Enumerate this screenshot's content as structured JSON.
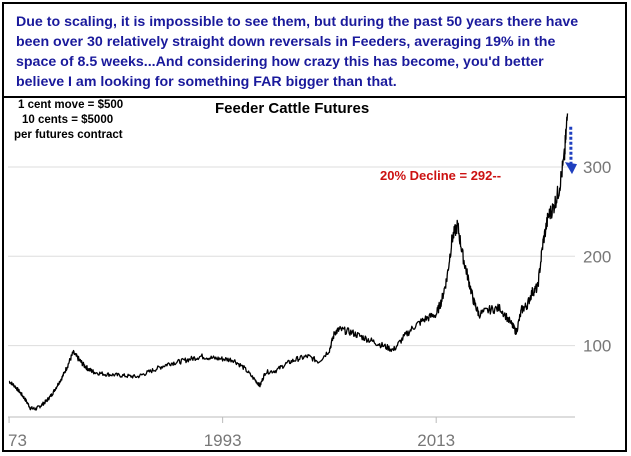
{
  "header": {
    "lines": [
      "Due to scaling, it is impossible to see them, but during the past 50 years there have",
      "been over 30 relatively straight down reversals in Feeders, averaging 19% in the",
      "space of 8.5 weeks...And considering how crazy this has become, you'd better",
      "believe I am looking for something FAR bigger than that."
    ]
  },
  "contract_note": {
    "line1": "1 cent move = $500",
    "line2": "10 cents = $5000",
    "line3": "per futures contract"
  },
  "colors": {
    "header_text": "#1a1a9c",
    "price_line": "#000000",
    "annotation": "#cc1111",
    "arrow": "#1f3fbf",
    "grid": "#dddddd",
    "tick_text": "#777777"
  },
  "chart_data": {
    "type": "line",
    "title": "Feeder Cattle Futures",
    "xlabel": "",
    "ylabel": "",
    "x_tick_labels": [
      "73",
      "1993",
      "2013"
    ],
    "y_tick_labels": [
      "100",
      "200",
      "300"
    ],
    "xlim": [
      1972.9,
      2026
    ],
    "ylim": [
      20,
      375
    ],
    "grid": "horizontal",
    "annotation": {
      "text": "20% Decline = 292--",
      "target_value": 292,
      "arrow": "downward arrow from the 2025 peak toward the 292 level"
    },
    "series": [
      {
        "x": [
          1973.0,
          1973.5,
          1974.0,
          1974.5,
          1975.0,
          1975.5,
          1976.0,
          1976.5,
          1977.0,
          1977.5,
          1978.0,
          1978.5,
          1979.0,
          1979.5,
          1980.0,
          1980.5,
          1981.0,
          1982.0,
          1983.0,
          1984.0,
          1985.0,
          1986.0,
          1987.0,
          1988.0,
          1989.0,
          1990.0,
          1991.0,
          1992.0,
          1993.0,
          1994.0,
          1995.0,
          1996.0,
          1996.5,
          1997.0,
          1998.0,
          1999.0,
          2000.0,
          2001.0,
          2002.0,
          2003.0,
          2003.5,
          2004.0,
          2005.0,
          2006.0,
          2007.0,
          2008.0,
          2009.0,
          2010.0,
          2011.0,
          2012.0,
          2013.0,
          2013.5,
          2014.0,
          2014.5,
          2015.0,
          2015.5,
          2016.0,
          2016.5,
          2017.0,
          2018.0,
          2019.0,
          2020.0,
          2020.5,
          2021.0,
          2021.5,
          2022.0,
          2022.5,
          2023.0,
          2023.5,
          2024.0,
          2024.5,
          2025.0,
          2025.3
        ],
        "y": [
          60,
          55,
          48,
          40,
          30,
          29,
          33,
          38,
          45,
          55,
          65,
          78,
          92,
          85,
          78,
          73,
          70,
          68,
          67,
          66,
          65,
          70,
          75,
          80,
          82,
          85,
          88,
          86,
          85,
          84,
          75,
          62,
          55,
          70,
          72,
          80,
          85,
          88,
          82,
          95,
          115,
          118,
          115,
          110,
          105,
          100,
          95,
          110,
          122,
          130,
          135,
          150,
          175,
          220,
          235,
          200,
          175,
          150,
          135,
          140,
          142,
          125,
          115,
          140,
          145,
          160,
          165,
          215,
          245,
          255,
          275,
          310,
          360
        ]
      }
    ]
  }
}
